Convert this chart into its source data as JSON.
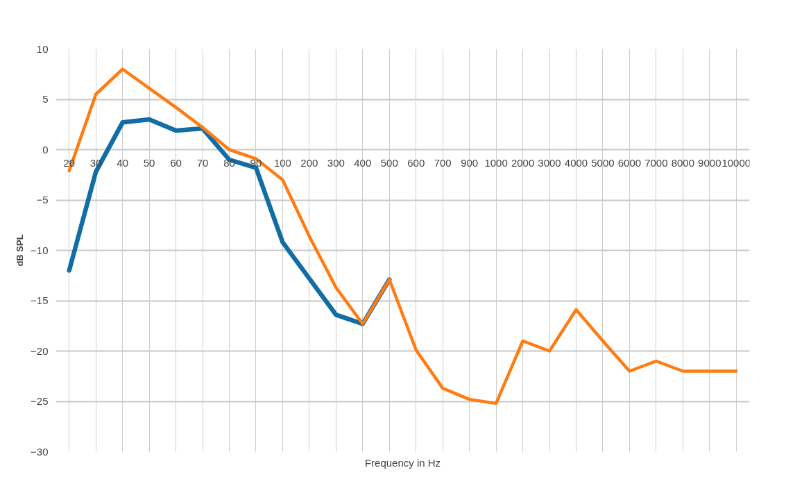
{
  "chart_data": {
    "type": "line",
    "xlabel": "Frequency in Hz",
    "ylabel": "dB SPL",
    "categories": [
      "20",
      "30",
      "40",
      "50",
      "60",
      "70",
      "80",
      "90",
      "100",
      "200",
      "300",
      "400",
      "500",
      "600",
      "700",
      "900",
      "1000",
      "2000",
      "3000",
      "4000",
      "5000",
      "6000",
      "7000",
      "8000",
      "9000",
      "10000"
    ],
    "series": [
      {
        "color": "#126da5",
        "values": [
          -12,
          -2.2,
          2.7,
          3.0,
          1.9,
          2.1,
          -1.0,
          -1.8,
          -9.2,
          -12.8,
          -16.4,
          -17.3,
          -12.9,
          null,
          null,
          null,
          null,
          null,
          null,
          null,
          null,
          null,
          null,
          null,
          null,
          null
        ]
      },
      {
        "color": "#ff7c12",
        "values": [
          -2.1,
          5.5,
          8.0,
          6.1,
          4.2,
          2.2,
          0,
          -0.9,
          -3.0,
          -8.6,
          -13.7,
          -17.3,
          -12.9,
          -19.9,
          -23.7,
          -24.8,
          -25.2,
          -19.0,
          -20.0,
          -15.9,
          -19.0,
          -22.0,
          -21.0,
          -22.0,
          -22.0,
          -22.0
        ]
      }
    ],
    "ylim": [
      -30,
      10
    ],
    "yticks": [
      -30,
      -25,
      -20,
      -15,
      -10,
      -5,
      0,
      5,
      10
    ],
    "grid": true,
    "line_style": "solid",
    "marker": "none"
  }
}
